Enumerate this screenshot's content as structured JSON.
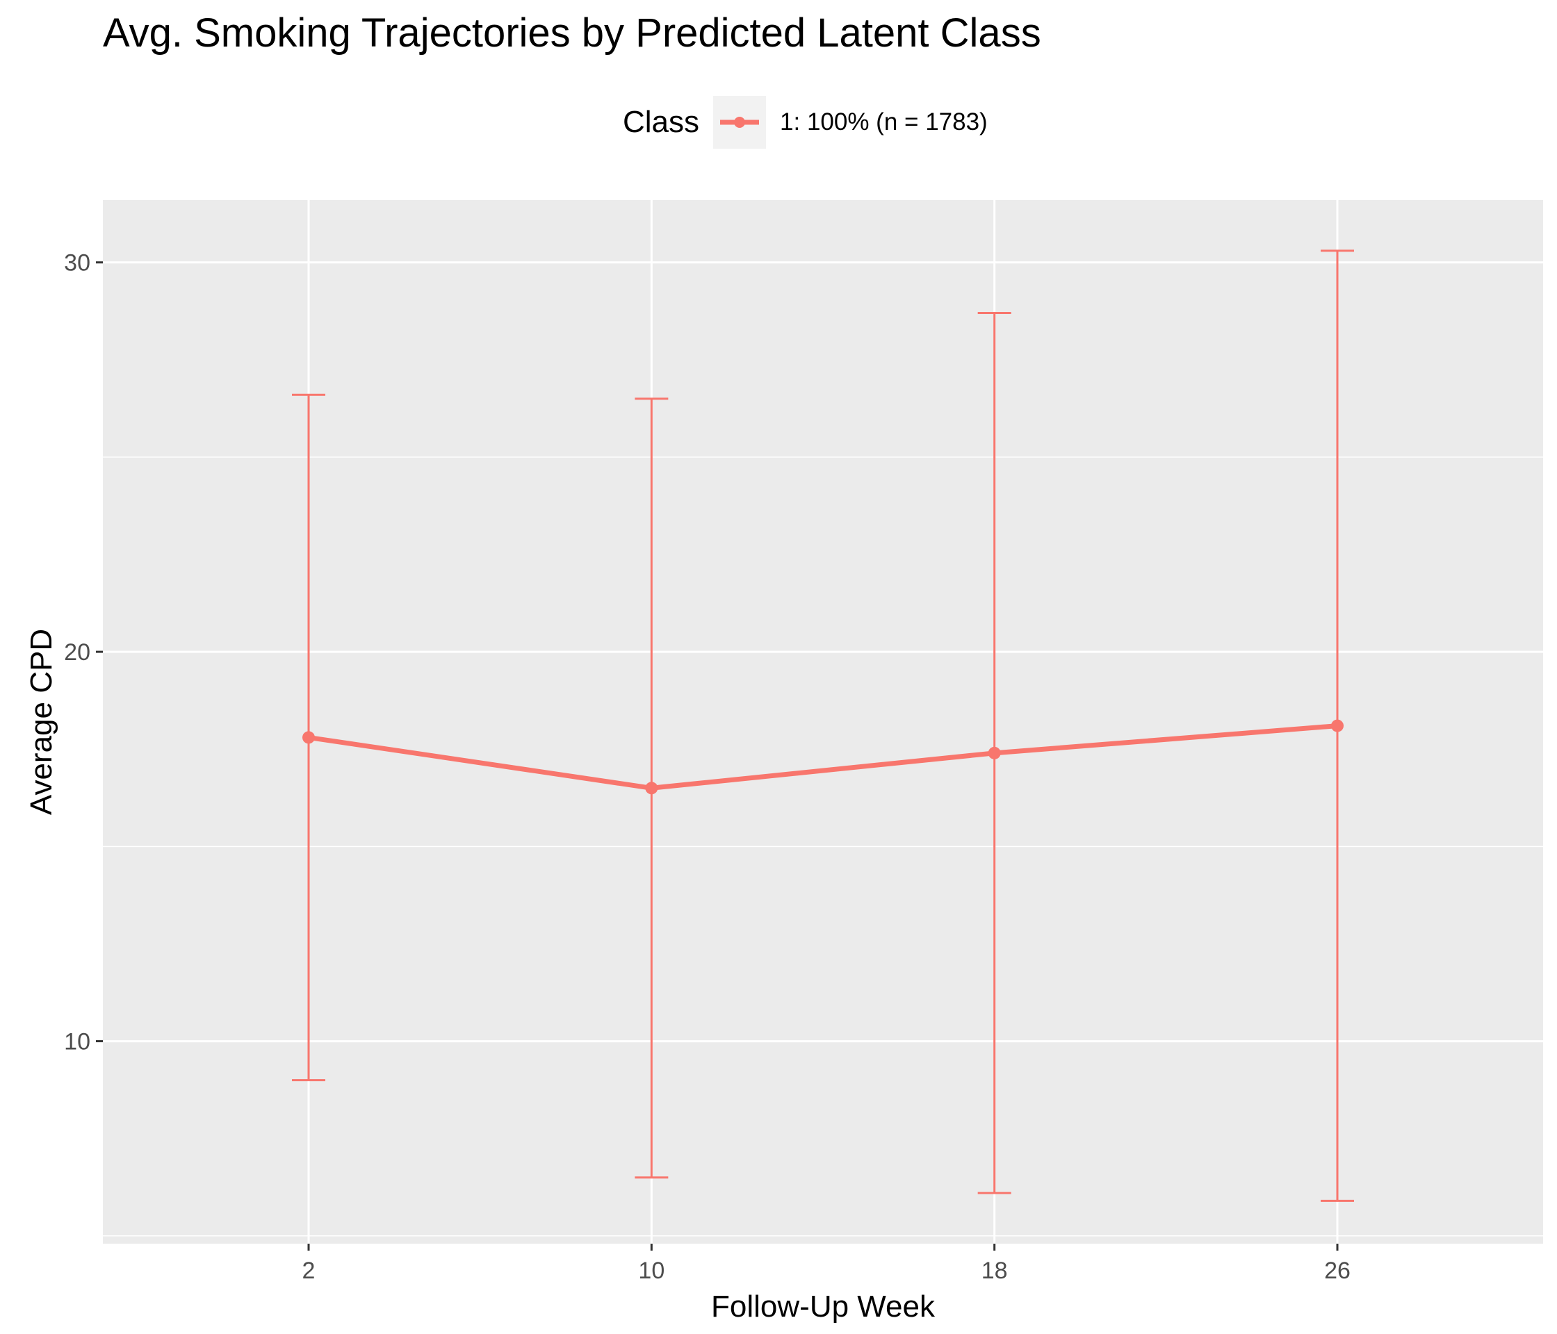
{
  "chart_data": {
    "type": "line",
    "title": "Avg. Smoking Trajectories by Predicted Latent Class",
    "xlabel": "Follow-Up Week",
    "ylabel": "Average CPD",
    "x": [
      2,
      10,
      18,
      26
    ],
    "x_tick_labels": [
      "2",
      "10",
      "18",
      "26"
    ],
    "y_ticks": [
      10,
      20,
      30
    ],
    "y_tick_labels": [
      "10",
      "20",
      "30"
    ],
    "xlim": [
      -2.8,
      30.8
    ],
    "ylim": [
      4.8,
      31.6
    ],
    "grid": true,
    "legend_title": "Class",
    "legend_position": "top",
    "series": [
      {
        "name": "1: 100% (n = 1783)",
        "color": "#F8766D",
        "values": [
          17.8,
          16.5,
          17.4,
          18.1
        ],
        "error_low": [
          9.0,
          6.5,
          6.1,
          5.9
        ],
        "error_high": [
          26.6,
          26.5,
          28.7,
          30.3
        ]
      }
    ]
  }
}
